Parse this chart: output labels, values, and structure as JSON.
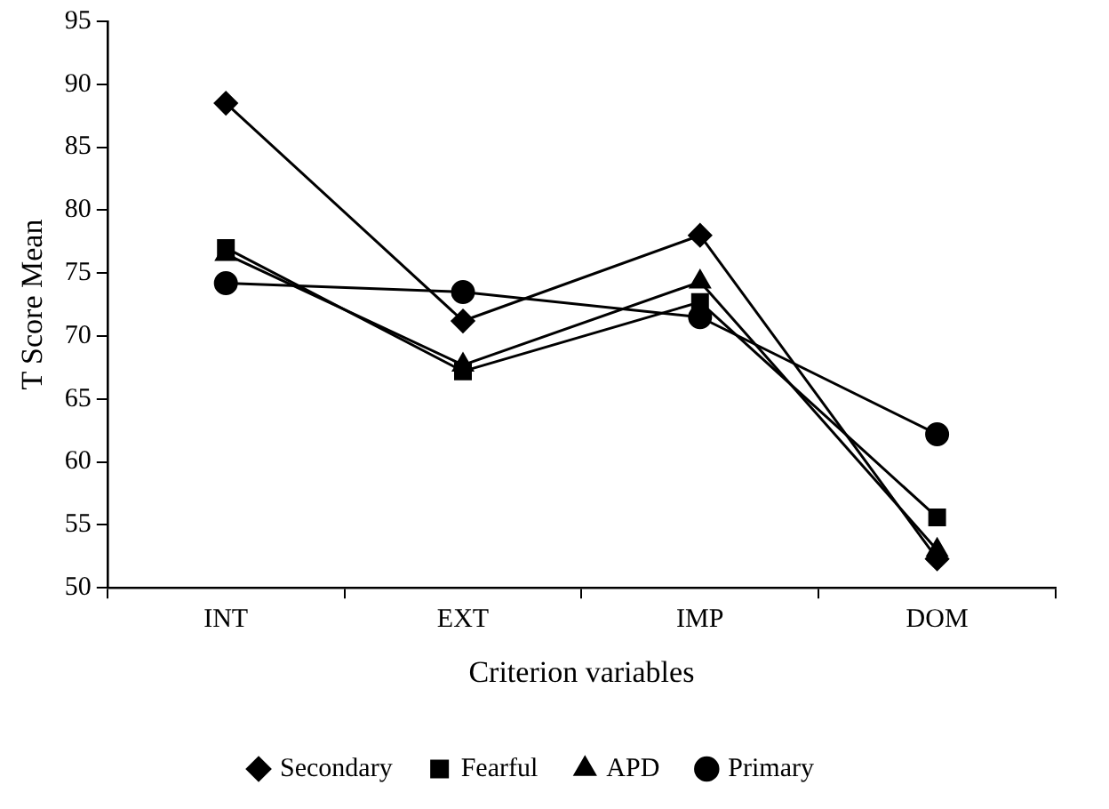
{
  "chart_data": {
    "type": "line",
    "xlabel": "Criterion variables",
    "ylabel": "T Score Mean",
    "categories": [
      "INT",
      "EXT",
      "IMP",
      "DOM"
    ],
    "series": [
      {
        "name": "Secondary",
        "color": "#000000",
        "marker": "diamond",
        "values": [
          88.5,
          71.2,
          78,
          52.3
        ]
      },
      {
        "name": "Fearful",
        "color": "#000000",
        "marker": "square",
        "values": [
          77,
          67.2,
          72.7,
          55.6
        ]
      },
      {
        "name": "APD",
        "color": "#000000",
        "marker": "triangle",
        "values": [
          76.5,
          67.7,
          74.3,
          53
        ]
      },
      {
        "name": "Primary",
        "color": "#000000",
        "marker": "circle",
        "values": [
          74.2,
          73.5,
          71.5,
          62.2
        ]
      }
    ],
    "ylim": [
      50,
      95
    ],
    "yticks": [
      50,
      55,
      60,
      65,
      70,
      75,
      80,
      85,
      90,
      95
    ],
    "grid": false,
    "legend": "bottom",
    "line_style": "solid"
  }
}
